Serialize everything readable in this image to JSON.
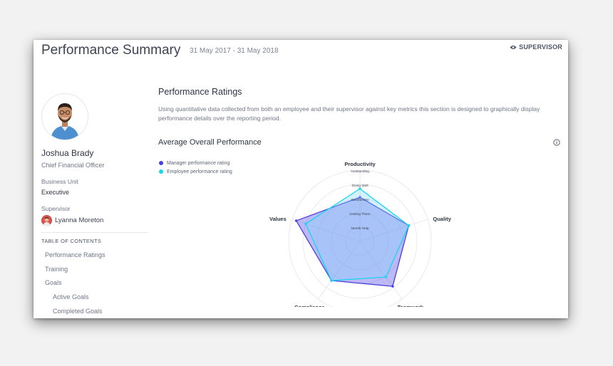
{
  "header": {
    "title": "Performance Summary",
    "date_range": "31 May 2017 - 31 May 2018",
    "role_tag": "SUPERVISOR",
    "role_icon": "eye-icon"
  },
  "employee": {
    "name": "Joshua Brady",
    "title": "Chief Financial Officer",
    "business_unit_label": "Business Unit",
    "business_unit": "Executive",
    "supervisor_label": "Supervisor",
    "supervisor_name": "Lyanna Moreton"
  },
  "toc": {
    "heading": "TABLE OF CONTENTS",
    "items": [
      {
        "label": "Performance Ratings"
      },
      {
        "label": "Training"
      },
      {
        "label": "Goals"
      },
      {
        "label": "Active Goals"
      },
      {
        "label": "Completed Goals"
      }
    ]
  },
  "section": {
    "title": "Performance Ratings",
    "description": "Using quantitative data collected from both an employee and their supervisor against key metrics this section is designed to graphically display performance details over the reporting period."
  },
  "chart": {
    "title": "Average Overall Performance",
    "info_icon": "info-icon"
  },
  "chart_data": {
    "type": "radar",
    "axes": [
      "Productivity",
      "Quality",
      "Teamwork",
      "Compliance",
      "Values"
    ],
    "scale_labels": [
      "Needs Help",
      "Getting There",
      "Satisfactory",
      "Doing Well",
      "Outstanding"
    ],
    "rmax": 5,
    "legend_position": "top-left",
    "series": [
      {
        "name": "Manager performance rating",
        "color": "#4c3fe0",
        "values": [
          3.1,
          3.6,
          3.9,
          3.4,
          4.7
        ]
      },
      {
        "name": "Employee performance rating",
        "color": "#16d6f0",
        "values": [
          3.7,
          3.6,
          3.1,
          3.4,
          4.0
        ]
      }
    ]
  }
}
